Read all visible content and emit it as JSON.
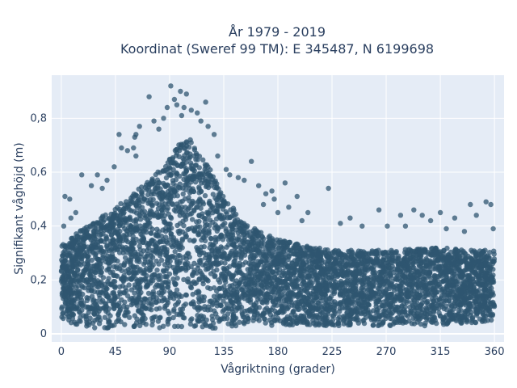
{
  "title": {
    "line1": "År 1979 - 2019",
    "line2": "Koordinat (Sweref 99 TM): E 345487, N 6199698"
  },
  "colors": {
    "plot_background": "#E5ECF6",
    "gridline": "#FFFFFF",
    "marker": "#2F5670",
    "text": "#2a3f5f"
  },
  "chart_data": {
    "type": "scatter",
    "title": "År 1979 - 2019 / Koordinat (Sweref 99 TM): E 345487, N 6199698",
    "xlabel": "Vågriktning (grader)",
    "ylabel": "Signifikant våghöjd (m)",
    "xlim": [
      -8,
      368
    ],
    "ylim": [
      -0.03,
      0.96
    ],
    "x_ticks": [
      0,
      45,
      90,
      135,
      180,
      225,
      270,
      315,
      360
    ],
    "x_tick_labels": [
      "0",
      "45",
      "90",
      "135",
      "180",
      "225",
      "270",
      "315",
      "360"
    ],
    "y_ticks": [
      0,
      0.2,
      0.4,
      0.6,
      0.8
    ],
    "y_tick_labels": [
      "0",
      "0,2",
      "0,4",
      "0,6",
      "0,8"
    ],
    "grid": true,
    "legend": "none",
    "density_profile": {
      "x": [
        0,
        15,
        30,
        45,
        60,
        75,
        90,
        100,
        110,
        120,
        135,
        150,
        165,
        180,
        200,
        225,
        270,
        315,
        345,
        360
      ],
      "upper_envelope": [
        0.33,
        0.38,
        0.43,
        0.47,
        0.52,
        0.58,
        0.65,
        0.72,
        0.72,
        0.64,
        0.52,
        0.42,
        0.38,
        0.35,
        0.33,
        0.31,
        0.31,
        0.32,
        0.31,
        0.31
      ],
      "lower_envelope": [
        0.05,
        0.03,
        0.02,
        0.02,
        0.02,
        0.02,
        0.02,
        0.02,
        0.02,
        0.02,
        0.02,
        0.03,
        0.03,
        0.03,
        0.03,
        0.03,
        0.03,
        0.03,
        0.04,
        0.05
      ]
    },
    "outlier_points": [
      {
        "x": 91,
        "y": 0.92
      },
      {
        "x": 99,
        "y": 0.9
      },
      {
        "x": 104,
        "y": 0.89
      },
      {
        "x": 94,
        "y": 0.87
      },
      {
        "x": 73,
        "y": 0.88
      },
      {
        "x": 120,
        "y": 0.86
      },
      {
        "x": 96,
        "y": 0.85
      },
      {
        "x": 102,
        "y": 0.84
      },
      {
        "x": 88,
        "y": 0.84
      },
      {
        "x": 108,
        "y": 0.83
      },
      {
        "x": 113,
        "y": 0.82
      },
      {
        "x": 85,
        "y": 0.8
      },
      {
        "x": 77,
        "y": 0.79
      },
      {
        "x": 116,
        "y": 0.79
      },
      {
        "x": 100,
        "y": 0.81
      },
      {
        "x": 65,
        "y": 0.77
      },
      {
        "x": 122,
        "y": 0.77
      },
      {
        "x": 81,
        "y": 0.76
      },
      {
        "x": 127,
        "y": 0.74
      },
      {
        "x": 61,
        "y": 0.73
      },
      {
        "x": 62,
        "y": 0.74
      },
      {
        "x": 60,
        "y": 0.69
      },
      {
        "x": 48,
        "y": 0.74
      },
      {
        "x": 55,
        "y": 0.68
      },
      {
        "x": 50,
        "y": 0.69
      },
      {
        "x": 62,
        "y": 0.66
      },
      {
        "x": 130,
        "y": 0.66
      },
      {
        "x": 137,
        "y": 0.61
      },
      {
        "x": 158,
        "y": 0.64
      },
      {
        "x": 147,
        "y": 0.58
      },
      {
        "x": 152,
        "y": 0.57
      },
      {
        "x": 140,
        "y": 0.59
      },
      {
        "x": 164,
        "y": 0.55
      },
      {
        "x": 170,
        "y": 0.52
      },
      {
        "x": 175,
        "y": 0.53
      },
      {
        "x": 186,
        "y": 0.56
      },
      {
        "x": 177,
        "y": 0.5
      },
      {
        "x": 196,
        "y": 0.51
      },
      {
        "x": 222,
        "y": 0.54
      },
      {
        "x": 189,
        "y": 0.47
      },
      {
        "x": 205,
        "y": 0.45
      },
      {
        "x": 168,
        "y": 0.48
      },
      {
        "x": 180,
        "y": 0.45
      },
      {
        "x": 200,
        "y": 0.42
      },
      {
        "x": 17,
        "y": 0.59
      },
      {
        "x": 30,
        "y": 0.59
      },
      {
        "x": 38,
        "y": 0.57
      },
      {
        "x": 44,
        "y": 0.62
      },
      {
        "x": 25,
        "y": 0.55
      },
      {
        "x": 34,
        "y": 0.54
      },
      {
        "x": 3,
        "y": 0.51
      },
      {
        "x": 7,
        "y": 0.5
      },
      {
        "x": 12,
        "y": 0.45
      },
      {
        "x": 2,
        "y": 0.4
      },
      {
        "x": 8,
        "y": 0.43
      },
      {
        "x": 264,
        "y": 0.46
      },
      {
        "x": 282,
        "y": 0.44
      },
      {
        "x": 293,
        "y": 0.46
      },
      {
        "x": 300,
        "y": 0.44
      },
      {
        "x": 307,
        "y": 0.42
      },
      {
        "x": 327,
        "y": 0.43
      },
      {
        "x": 340,
        "y": 0.48
      },
      {
        "x": 353,
        "y": 0.49
      },
      {
        "x": 357,
        "y": 0.48
      },
      {
        "x": 345,
        "y": 0.44
      },
      {
        "x": 315,
        "y": 0.45
      },
      {
        "x": 271,
        "y": 0.4
      },
      {
        "x": 240,
        "y": 0.43
      },
      {
        "x": 250,
        "y": 0.4
      },
      {
        "x": 232,
        "y": 0.41
      },
      {
        "x": 286,
        "y": 0.4
      },
      {
        "x": 320,
        "y": 0.39
      },
      {
        "x": 359,
        "y": 0.39
      },
      {
        "x": 335,
        "y": 0.38
      }
    ]
  }
}
